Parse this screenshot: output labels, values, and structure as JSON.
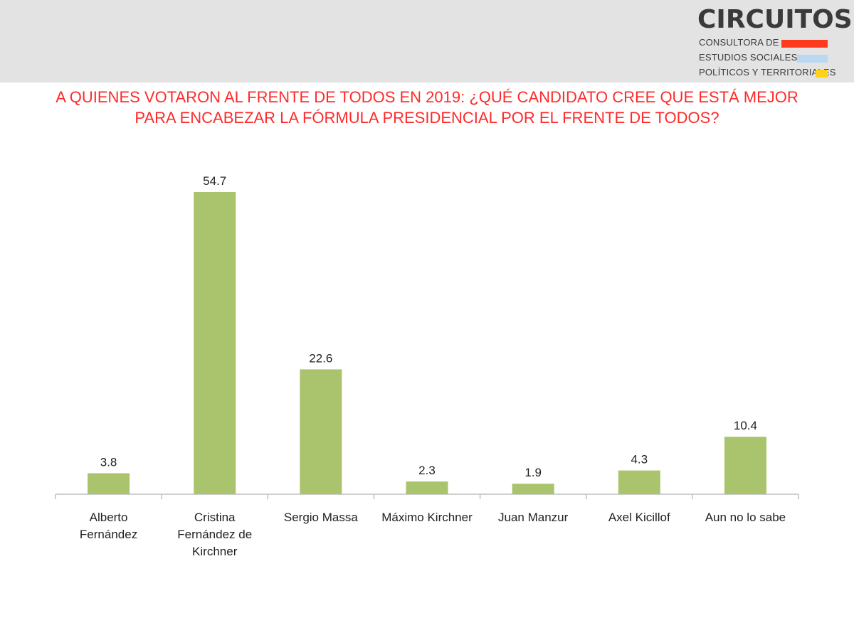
{
  "logo": {
    "title": "CIRCUITOS",
    "line1": "CONSULTORA DE",
    "line2": "ESTUDIOS SOCIALES,",
    "line3": "POLÍTICOS Y TERRITORIALES",
    "colors": [
      "#ff3b1f",
      "#b9d8f2",
      "#ffd21a"
    ]
  },
  "title_lines": [
    "A QUIENES VOTARON AL FRENTE DE TODOS EN 2019: ¿QUÉ CANDIDATO CREE QUE ESTÁ MEJOR",
    "PARA ENCABEZAR LA FÓRMULA PRESIDENCIAL POR EL FRENTE DE TODOS?"
  ],
  "colors": {
    "title": "#ff2a2a",
    "bar": "#a9c46c",
    "axis": "#bfbfbf",
    "header_bg": "#e3e3e3"
  },
  "chart_data": {
    "type": "bar",
    "title": "A QUIENES VOTARON AL FRENTE DE TODOS EN 2019: ¿QUÉ CANDIDATO CREE QUE ESTÁ MEJOR PARA ENCABEZAR LA FÓRMULA PRESIDENCIAL POR EL FRENTE DE TODOS?",
    "categories": [
      [
        "Alberto",
        "Fernández"
      ],
      [
        "Cristina",
        "Fernández de",
        "Kirchner"
      ],
      [
        "Sergio Massa"
      ],
      [
        "Máximo Kirchner"
      ],
      [
        "Juan Manzur"
      ],
      [
        "Axel Kicillof"
      ],
      [
        "Aun no lo sabe"
      ]
    ],
    "values": [
      3.8,
      54.7,
      22.6,
      2.3,
      1.9,
      4.3,
      10.4
    ],
    "data_labels": [
      "3.8",
      "54.7",
      "22.6",
      "2.3",
      "1.9",
      "4.3",
      "10.4"
    ],
    "ylim": [
      0,
      60
    ],
    "grid": false,
    "legend": "none"
  }
}
